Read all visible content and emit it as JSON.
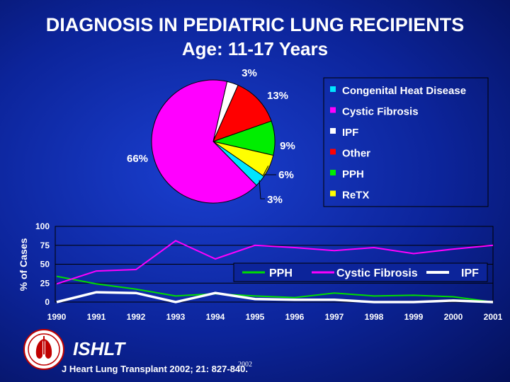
{
  "title_line1": "DIAGNOSIS IN PEDIATRIC LUNG RECIPIENTS",
  "title_line2": "Age: 11-17 Years",
  "chart_data": [
    {
      "type": "pie",
      "slices": [
        {
          "name": "IPF",
          "value": 3,
          "label": "3%",
          "color": "#ffffff"
        },
        {
          "name": "Other",
          "value": 13,
          "label": "13%",
          "color": "#ff0000"
        },
        {
          "name": "PPH",
          "value": 9,
          "label": "9%",
          "color": "#00ee00"
        },
        {
          "name": "ReTX",
          "value": 6,
          "label": "6%",
          "color": "#ffff00"
        },
        {
          "name": "Congenital Heat Disease",
          "value": 3,
          "label": "3%",
          "color": "#00e5ff"
        },
        {
          "name": "Cystic Fibrosis",
          "value": 66,
          "label": "66%",
          "color": "#ff00ff"
        }
      ],
      "legend": [
        "Congenital Heat Disease",
        "Cystic Fibrosis",
        "IPF",
        "Other",
        "PPH",
        "ReTX"
      ],
      "legend_placement": "right"
    },
    {
      "type": "line",
      "x": [
        1990,
        1991,
        1992,
        1993,
        1994,
        1995,
        1996,
        1997,
        1998,
        1999,
        2000,
        2001
      ],
      "ylabel": "% of Cases",
      "ylim": [
        0,
        100
      ],
      "yticks": [
        0,
        25,
        50,
        75,
        100
      ],
      "grid": true,
      "legend_placement": "top-right",
      "series": [
        {
          "name": "PPH",
          "color": "#00dd00",
          "values": [
            34,
            24,
            17,
            8,
            11,
            8,
            6,
            12,
            8,
            9,
            7,
            0
          ]
        },
        {
          "name": "Cystic Fibrosis",
          "color": "#ff00ff",
          "values": [
            24,
            41,
            43,
            81,
            57,
            75,
            72,
            68,
            72,
            64,
            70,
            75
          ]
        },
        {
          "name": "IPF",
          "color": "#ffffff",
          "values": [
            0,
            13,
            12,
            0,
            12,
            4,
            3,
            3,
            0,
            0,
            2,
            0
          ]
        }
      ]
    }
  ],
  "footer": {
    "org": "ISHLT",
    "citation": "J Heart Lung Transplant 2002; 21: 827-840.",
    "year_note": "2002"
  }
}
